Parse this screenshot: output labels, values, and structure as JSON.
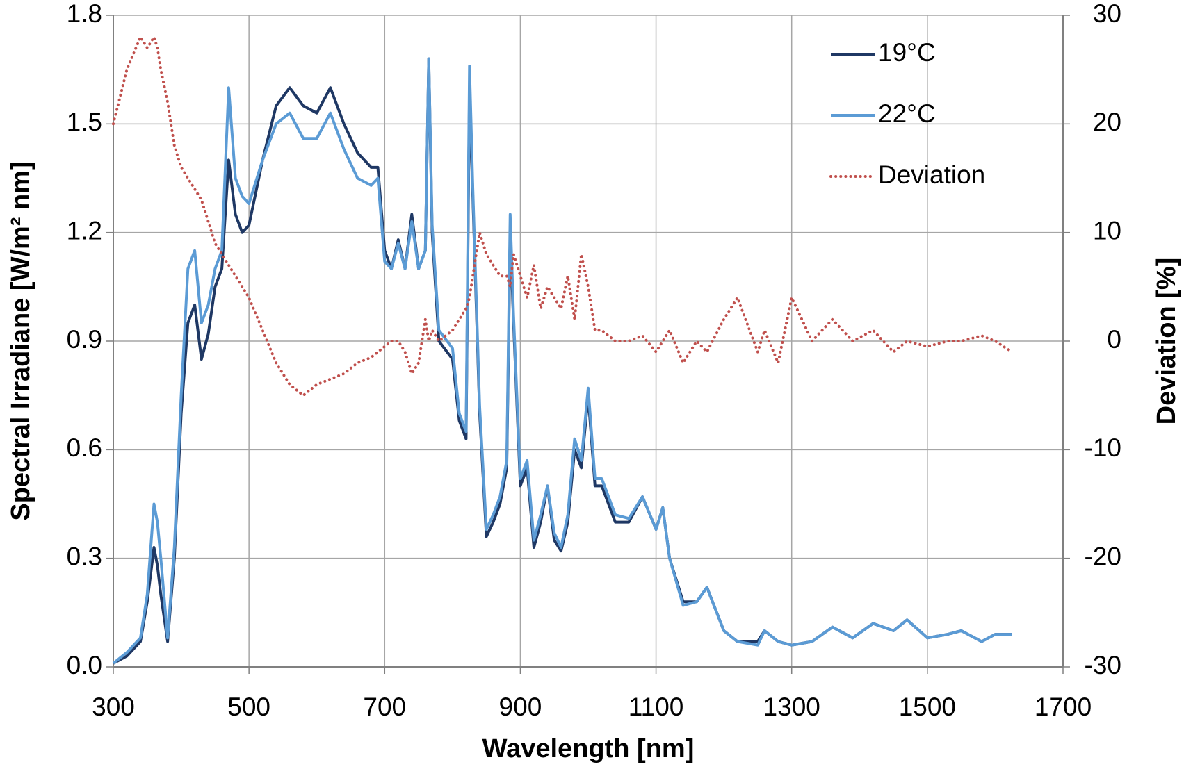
{
  "chart_data": {
    "type": "line",
    "xlabel": "Wavelength [nm]",
    "ylabel": "Spectral Irradiane [W/m² nm]",
    "y2label": "Deviation [%]",
    "x": [
      300,
      320,
      340,
      350,
      360,
      365,
      370,
      380,
      390,
      400,
      410,
      420,
      430,
      440,
      450,
      460,
      470,
      480,
      490,
      500,
      520,
      540,
      560,
      580,
      600,
      620,
      640,
      660,
      680,
      690,
      700,
      710,
      720,
      730,
      740,
      750,
      760,
      765,
      770,
      780,
      800,
      810,
      820,
      825,
      830,
      840,
      850,
      860,
      870,
      880,
      885,
      890,
      900,
      910,
      920,
      930,
      940,
      950,
      960,
      970,
      980,
      990,
      1000,
      1010,
      1020,
      1040,
      1060,
      1080,
      1100,
      1110,
      1120,
      1140,
      1160,
      1175,
      1200,
      1220,
      1250,
      1260,
      1280,
      1300,
      1330,
      1360,
      1390,
      1420,
      1450,
      1470,
      1500,
      1530,
      1550,
      1580,
      1600,
      1625
    ],
    "series": [
      {
        "name": "19°C",
        "color": "#1f3864",
        "style": "solid",
        "values": [
          0.01,
          0.03,
          0.07,
          0.18,
          0.33,
          0.28,
          0.2,
          0.07,
          0.3,
          0.7,
          0.95,
          1.0,
          0.85,
          0.92,
          1.05,
          1.1,
          1.4,
          1.25,
          1.2,
          1.22,
          1.4,
          1.55,
          1.6,
          1.55,
          1.53,
          1.6,
          1.5,
          1.42,
          1.38,
          1.38,
          1.15,
          1.1,
          1.18,
          1.1,
          1.25,
          1.1,
          1.15,
          1.68,
          1.2,
          0.9,
          0.85,
          0.68,
          0.63,
          1.6,
          1.3,
          0.7,
          0.36,
          0.4,
          0.45,
          0.55,
          1.2,
          0.95,
          0.5,
          0.55,
          0.33,
          0.4,
          0.5,
          0.35,
          0.32,
          0.4,
          0.6,
          0.55,
          0.75,
          0.5,
          0.5,
          0.4,
          0.4,
          0.47,
          0.38,
          0.44,
          0.3,
          0.18,
          0.18,
          0.22,
          0.1,
          0.07,
          0.07,
          0.1,
          0.07,
          0.06,
          0.07,
          0.11,
          0.08,
          0.12,
          0.1,
          0.13,
          0.08,
          0.09,
          0.1,
          0.07,
          0.09,
          0.09
        ]
      },
      {
        "name": "22°C",
        "color": "#5b9bd5",
        "style": "solid",
        "values": [
          0.01,
          0.04,
          0.08,
          0.2,
          0.45,
          0.4,
          0.3,
          0.08,
          0.33,
          0.75,
          1.1,
          1.15,
          0.95,
          1.0,
          1.1,
          1.15,
          1.6,
          1.35,
          1.3,
          1.28,
          1.4,
          1.5,
          1.53,
          1.46,
          1.46,
          1.53,
          1.43,
          1.35,
          1.33,
          1.35,
          1.12,
          1.1,
          1.17,
          1.1,
          1.23,
          1.1,
          1.15,
          1.68,
          1.22,
          0.93,
          0.88,
          0.7,
          0.65,
          1.66,
          1.32,
          0.72,
          0.38,
          0.42,
          0.47,
          0.57,
          1.25,
          0.97,
          0.52,
          0.57,
          0.35,
          0.42,
          0.5,
          0.37,
          0.33,
          0.42,
          0.63,
          0.57,
          0.77,
          0.52,
          0.52,
          0.42,
          0.41,
          0.47,
          0.38,
          0.44,
          0.3,
          0.17,
          0.18,
          0.22,
          0.1,
          0.07,
          0.06,
          0.1,
          0.07,
          0.06,
          0.07,
          0.11,
          0.08,
          0.12,
          0.1,
          0.13,
          0.08,
          0.09,
          0.1,
          0.07,
          0.09,
          0.09
        ]
      },
      {
        "name": "Deviation",
        "color": "#c0504d",
        "style": "dotted",
        "axis": "y2",
        "values": [
          20,
          25,
          28,
          27,
          28,
          27,
          25,
          22,
          18,
          16,
          15,
          14,
          13,
          11,
          9,
          8,
          7,
          6,
          5,
          4,
          1,
          -2,
          -4,
          -5,
          -4,
          -3.5,
          -3,
          -2,
          -1.5,
          -1,
          -0.5,
          0,
          0,
          -1,
          -3,
          -2,
          2,
          0,
          1,
          0,
          1,
          2,
          3,
          4,
          6,
          10,
          8,
          7,
          6,
          6,
          5,
          8,
          6,
          4,
          7,
          3,
          5,
          4,
          3,
          6,
          2,
          8,
          5,
          1,
          1,
          0,
          0,
          0.5,
          -1,
          0,
          1,
          -2,
          0,
          -1,
          2,
          4,
          -1,
          1,
          -2,
          4,
          0,
          2,
          0,
          1,
          -1,
          0,
          -0.5,
          0,
          0,
          0.5,
          0,
          -1
        ]
      }
    ],
    "xlim": [
      300,
      1700
    ],
    "xticks": [
      300,
      500,
      700,
      900,
      1100,
      1300,
      1500,
      1700
    ],
    "ylim": [
      0,
      1.8
    ],
    "yticks": [
      {
        "value": 0,
        "label": "0.0"
      },
      0.3,
      0.6,
      0.9,
      1.2,
      1.5,
      1.8
    ],
    "y2lim": [
      -30,
      30
    ],
    "y2ticks": [
      -30,
      -20,
      -10,
      0,
      10,
      20,
      30
    ],
    "grid": true,
    "legend": "upper right"
  }
}
